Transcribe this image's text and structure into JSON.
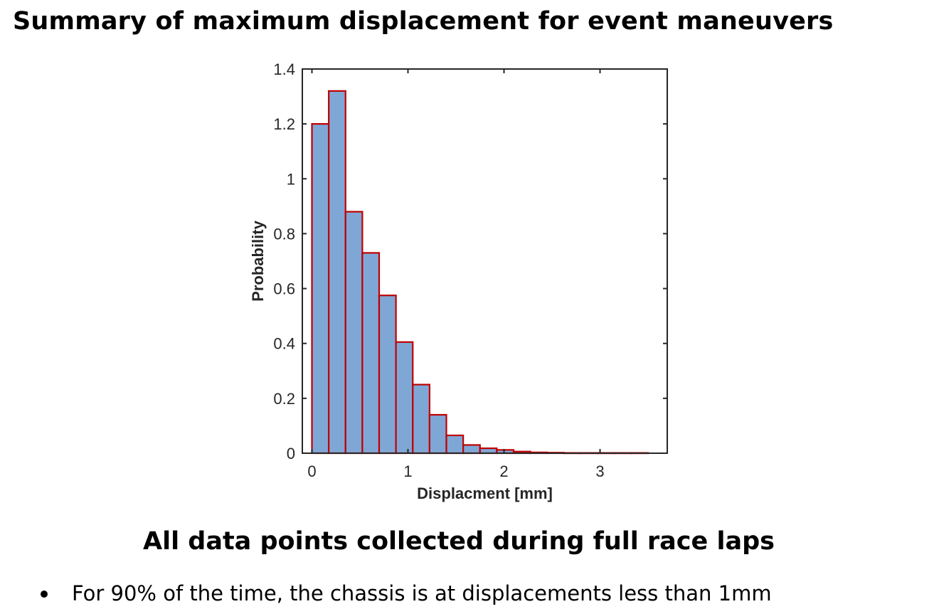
{
  "slide": {
    "title": "Summary of maximum displacement for event maneuvers",
    "subheading": "All data points collected during full race laps",
    "bullets": [
      "For 90% of the time, the chassis is at displacements less than 1mm"
    ]
  },
  "chart_data": {
    "type": "bar",
    "title": "",
    "xlabel": "Displacment [mm]",
    "ylabel": "Probability",
    "xlim": [
      -0.1,
      3.7
    ],
    "ylim": [
      0,
      1.4
    ],
    "xticks": [
      0,
      1,
      2,
      3
    ],
    "yticks": [
      0,
      0.2,
      0.4,
      0.6,
      0.8,
      1,
      1.2,
      1.4
    ],
    "bin_width": 0.175,
    "bin_start": 0,
    "values": [
      1.2,
      1.32,
      0.88,
      0.73,
      0.575,
      0.405,
      0.25,
      0.14,
      0.065,
      0.03,
      0.018,
      0.012,
      0.006,
      0.003,
      0.002,
      0.001,
      0.001,
      0.001,
      0.001,
      0.001
    ],
    "colors": {
      "bar_fill": "#7fa7d6",
      "bar_edge": "#c00000",
      "axes": "#262626"
    },
    "grid": false,
    "legend": "none"
  }
}
